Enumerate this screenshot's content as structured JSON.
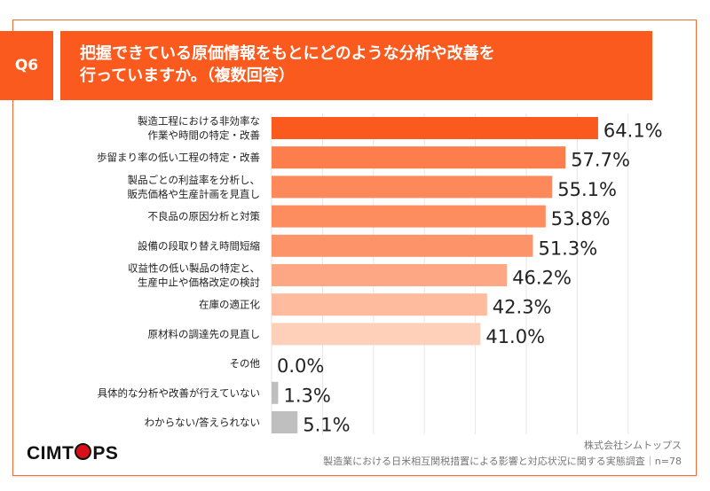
{
  "question_label": "Q6",
  "title_lines": [
    "把握できている原価情報をもとにどのような分析や改善を",
    "行っていますか。（複数回答）"
  ],
  "chart_data": {
    "type": "bar",
    "orientation": "horizontal",
    "categories": [
      [
        "製造工程における非効率な",
        "作業や時間の特定・改善"
      ],
      [
        "歩留まり率の低い工程の特定・改善"
      ],
      [
        "製品ごとの利益率を分析し、",
        "販売価格や生産計画を見直し"
      ],
      [
        "不良品の原因分析と対策"
      ],
      [
        "設備の段取り替え時間短縮"
      ],
      [
        "収益性の低い製品の特定と、",
        "生産中止や価格改定の検討"
      ],
      [
        "在庫の適正化"
      ],
      [
        "原材料の調達先の見直し"
      ],
      [
        "その他"
      ],
      [
        "具体的な分析や改善が行えていない"
      ],
      [
        "わからない/答えられない"
      ]
    ],
    "values": [
      64.1,
      57.7,
      55.1,
      53.8,
      51.3,
      46.2,
      42.3,
      41.0,
      0.0,
      1.3,
      5.1
    ],
    "value_labels": [
      "64.1%",
      "57.7%",
      "55.1%",
      "53.8%",
      "51.3%",
      "46.2%",
      "42.3%",
      "41.0%",
      "0.0%",
      "1.3%",
      "5.1%"
    ],
    "colors": [
      "#fa5a1e",
      "#fc7e4c",
      "#fd8859",
      "#fd8c5e",
      "#fd9469",
      "#fea784",
      "#febb9d",
      "#fecfb9",
      "#bfbfbf",
      "#bfbfbf",
      "#bfbfbf"
    ],
    "xlim": [
      0,
      70
    ],
    "grid": true,
    "gridline_color": "#e6e6e6",
    "unit": "%"
  },
  "logo": {
    "text_before": "CIMT",
    "text_after": "PS"
  },
  "source": {
    "company": "株式会社シムトップス",
    "survey": "製造業における日米相互関税措置による影響と対応状況に関する実態調査｜n=78"
  }
}
